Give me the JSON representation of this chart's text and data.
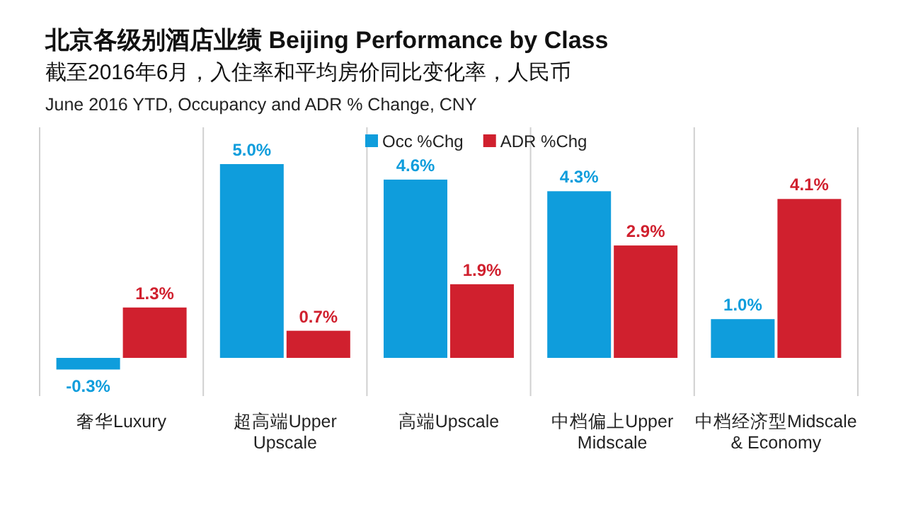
{
  "chart_data": {
    "type": "bar",
    "title": "北京各级别酒店业绩 Beijing Performance by Class",
    "subtitle": "截至2016年6月，入住率和平均房价同比变化率，人民币",
    "annotations": [
      "June 2016 YTD, Occupancy and ADR % Change, CNY"
    ],
    "categories": [
      "奢华Luxury",
      "超高端Upper Upscale",
      "高端Upscale",
      "中档偏上Upper Midscale",
      "中档经济型Midscale & Economy"
    ],
    "series": [
      {
        "name": "Occ %Chg",
        "color": "#0f9ddc",
        "values": [
          -0.3,
          5.0,
          4.6,
          4.3,
          1.0
        ],
        "value_labels": [
          "-0.3%",
          "5.0%",
          "4.6%",
          "4.3%",
          "1.0%"
        ]
      },
      {
        "name": "ADR %Chg",
        "color": "#d0202e",
        "values": [
          1.3,
          0.7,
          1.9,
          2.9,
          4.1
        ],
        "value_labels": [
          "1.3%",
          "0.7%",
          "1.9%",
          "2.9%",
          "4.1%"
        ]
      }
    ],
    "grid": "x",
    "legend": "top"
  }
}
